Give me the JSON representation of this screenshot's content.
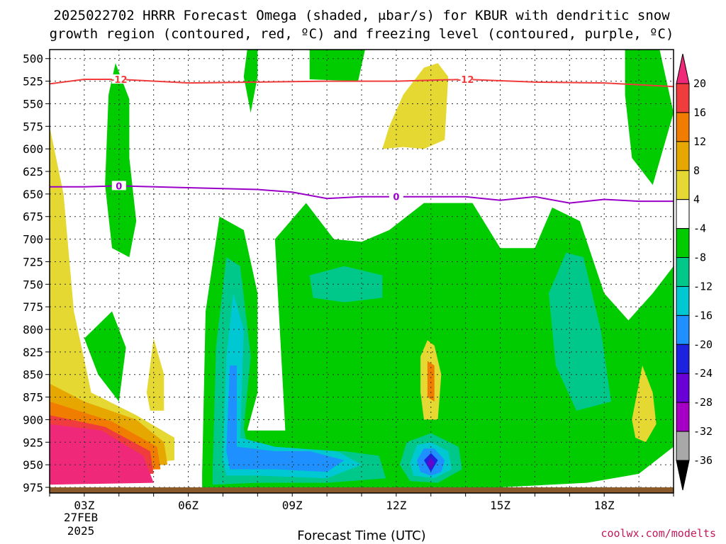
{
  "chart_data": {
    "type": "heatmap",
    "title_lines": [
      "2025022702 HRRR Forecast Omega (shaded, μbar/s) for KBUR with dendritic snow",
      "growth region (contoured, red, ºC) and freezing level (contoured, purple, ºC)"
    ],
    "xlabel": "Forecast Time (UTC)",
    "x_ticks": [
      {
        "hour": 3,
        "label": "03Z"
      },
      {
        "hour": 6,
        "label": "06Z"
      },
      {
        "hour": 9,
        "label": "09Z"
      },
      {
        "hour": 12,
        "label": "12Z"
      },
      {
        "hour": 15,
        "label": "15Z"
      },
      {
        "hour": 18,
        "label": "18Z"
      }
    ],
    "date_label": [
      "27FEB",
      "2025"
    ],
    "xlim": [
      2,
      20
    ],
    "ylim": [
      975,
      490
    ],
    "y_ticks": [
      500,
      525,
      550,
      575,
      600,
      625,
      650,
      675,
      700,
      725,
      750,
      775,
      800,
      825,
      850,
      875,
      900,
      925,
      950,
      975
    ],
    "grid": true,
    "colorbar": {
      "levels": [
        -36,
        -32,
        -28,
        -24,
        -20,
        -16,
        -12,
        -8,
        -4,
        4,
        8,
        12,
        16,
        20
      ],
      "colors": [
        "#000000",
        "#a8a8a8",
        "#a600c4",
        "#6a00d8",
        "#1c22e0",
        "#1e90ff",
        "#00c8d2",
        "#00c88a",
        "#00cc00",
        "#ffffff",
        "#e6d832",
        "#e6a800",
        "#f07c00",
        "#f03c3c",
        "#f0287a"
      ]
    },
    "contours": [
      {
        "label": "-12",
        "color": "#f03c3c",
        "points": [
          [
            2,
            528
          ],
          [
            3,
            523
          ],
          [
            4,
            523
          ],
          [
            6,
            527
          ],
          [
            8,
            526
          ],
          [
            10,
            525
          ],
          [
            12,
            525
          ],
          [
            14,
            523
          ],
          [
            16,
            526
          ],
          [
            18,
            527
          ],
          [
            20,
            531
          ]
        ]
      },
      {
        "label": "0",
        "color": "#9a00c8",
        "points": [
          [
            2,
            642
          ],
          [
            3,
            642
          ],
          [
            4,
            641
          ],
          [
            6,
            643
          ],
          [
            8,
            645
          ],
          [
            9,
            648
          ],
          [
            10,
            655
          ],
          [
            11,
            653
          ],
          [
            12,
            653
          ],
          [
            13,
            653
          ],
          [
            14,
            653
          ],
          [
            15,
            657
          ],
          [
            16,
            653
          ],
          [
            17,
            660
          ],
          [
            18,
            656
          ],
          [
            19,
            658
          ],
          [
            20,
            658
          ]
        ]
      }
    ],
    "omega_regions": [
      {
        "value": 4,
        "points": [
          [
            2,
            575
          ],
          [
            2.4,
            650
          ],
          [
            2.7,
            780
          ],
          [
            3.2,
            870
          ],
          [
            4.5,
            895
          ],
          [
            5.6,
            920
          ],
          [
            5.6,
            945
          ],
          [
            2,
            960
          ]
        ]
      },
      {
        "value": 8,
        "points": [
          [
            2,
            860
          ],
          [
            3,
            880
          ],
          [
            4.5,
            900
          ],
          [
            5.3,
            925
          ],
          [
            5.4,
            950
          ],
          [
            2,
            955
          ]
        ]
      },
      {
        "value": 12,
        "points": [
          [
            2,
            880
          ],
          [
            3.8,
            902
          ],
          [
            5.1,
            930
          ],
          [
            5.2,
            955
          ],
          [
            2,
            958
          ]
        ]
      },
      {
        "value": 16,
        "points": [
          [
            2,
            895
          ],
          [
            3.6,
            908
          ],
          [
            4.9,
            935
          ],
          [
            5,
            960
          ],
          [
            2,
            962
          ]
        ]
      },
      {
        "value": 20,
        "points": [
          [
            2,
            905
          ],
          [
            3.5,
            912
          ],
          [
            4.7,
            940
          ],
          [
            5,
            970
          ],
          [
            2,
            972
          ]
        ]
      },
      {
        "value": -4,
        "points": [
          [
            3.9,
            505
          ],
          [
            4.3,
            545
          ],
          [
            4.3,
            610
          ],
          [
            4.5,
            680
          ],
          [
            4.3,
            720
          ],
          [
            3.8,
            710
          ],
          [
            3.6,
            640
          ],
          [
            3.7,
            540
          ]
        ]
      },
      {
        "value": -4,
        "points": [
          [
            7.7,
            490
          ],
          [
            8,
            490
          ],
          [
            8,
            520
          ],
          [
            7.8,
            560
          ],
          [
            7.6,
            520
          ]
        ]
      },
      {
        "value": -4,
        "points": [
          [
            9.5,
            490
          ],
          [
            11.1,
            490
          ],
          [
            10.9,
            525
          ],
          [
            9.5,
            523
          ]
        ]
      },
      {
        "value": -4,
        "points": [
          [
            18.6,
            490
          ],
          [
            19.6,
            490
          ],
          [
            20,
            560
          ],
          [
            19.4,
            640
          ],
          [
            18.8,
            610
          ],
          [
            18.6,
            540
          ]
        ]
      },
      {
        "value": -4,
        "points": [
          [
            3,
            810
          ],
          [
            3.8,
            780
          ],
          [
            4.2,
            820
          ],
          [
            4,
            880
          ],
          [
            3.4,
            850
          ]
        ]
      },
      {
        "value": -4,
        "points": [
          [
            6.4,
            960
          ],
          [
            6.5,
            780
          ],
          [
            6.9,
            675
          ],
          [
            7.6,
            690
          ],
          [
            8,
            760
          ],
          [
            8,
            870
          ],
          [
            7.7,
            912
          ],
          [
            8.8,
            912
          ],
          [
            8.5,
            700
          ],
          [
            9.4,
            660
          ],
          [
            10.2,
            700
          ],
          [
            11,
            703
          ],
          [
            11.8,
            690
          ],
          [
            12.8,
            660
          ],
          [
            14.2,
            660
          ],
          [
            15,
            710
          ],
          [
            16,
            710
          ],
          [
            16.5,
            665
          ],
          [
            17.3,
            680
          ],
          [
            18,
            760
          ],
          [
            18.7,
            790
          ],
          [
            19.4,
            760
          ],
          [
            20,
            730
          ],
          [
            20,
            930
          ],
          [
            19,
            960
          ],
          [
            17.5,
            970
          ],
          [
            15,
            975
          ],
          [
            12,
            975
          ],
          [
            9,
            975
          ],
          [
            6.4,
            975
          ]
        ]
      },
      {
        "value": -8,
        "points": [
          [
            6.7,
            960
          ],
          [
            6.8,
            820
          ],
          [
            7.1,
            720
          ],
          [
            7.5,
            730
          ],
          [
            7.8,
            830
          ],
          [
            7.6,
            910
          ],
          [
            7.8,
            945
          ],
          [
            9,
            935
          ],
          [
            10.5,
            935
          ],
          [
            11.5,
            940
          ],
          [
            11.7,
            965
          ],
          [
            10,
            970
          ],
          [
            8,
            970
          ],
          [
            6.7,
            972
          ]
        ]
      },
      {
        "value": -8,
        "points": [
          [
            16.4,
            760
          ],
          [
            16.9,
            715
          ],
          [
            17.4,
            720
          ],
          [
            17.9,
            800
          ],
          [
            18.2,
            880
          ],
          [
            17.2,
            890
          ],
          [
            16.6,
            840
          ]
        ]
      },
      {
        "value": -8,
        "points": [
          [
            9.5,
            740
          ],
          [
            10.5,
            730
          ],
          [
            11.6,
            740
          ],
          [
            11.6,
            765
          ],
          [
            10.5,
            770
          ],
          [
            9.6,
            765
          ]
        ]
      },
      {
        "value": -8,
        "points": [
          [
            12.1,
            950
          ],
          [
            12.3,
            925
          ],
          [
            13,
            915
          ],
          [
            13.8,
            930
          ],
          [
            13.9,
            955
          ],
          [
            13.2,
            970
          ],
          [
            12.4,
            968
          ]
        ]
      },
      {
        "value": -12,
        "points": [
          [
            7,
            945
          ],
          [
            7.1,
            830
          ],
          [
            7.3,
            760
          ],
          [
            7.6,
            800
          ],
          [
            7.5,
            920
          ],
          [
            8.5,
            930
          ],
          [
            10.3,
            935
          ],
          [
            11,
            950
          ],
          [
            10,
            965
          ],
          [
            8,
            962
          ],
          [
            7.1,
            962
          ]
        ]
      },
      {
        "value": -12,
        "points": [
          [
            12.4,
            948
          ],
          [
            12.6,
            928
          ],
          [
            13,
            925
          ],
          [
            13.5,
            935
          ],
          [
            13.6,
            955
          ],
          [
            13.1,
            965
          ],
          [
            12.5,
            962
          ]
        ]
      },
      {
        "value": -16,
        "points": [
          [
            7.1,
            935
          ],
          [
            7.2,
            840
          ],
          [
            7.4,
            840
          ],
          [
            7.4,
            930
          ],
          [
            8.5,
            935
          ],
          [
            9.5,
            935
          ],
          [
            10.5,
            945
          ],
          [
            10,
            958
          ],
          [
            8.5,
            955
          ],
          [
            7.2,
            955
          ]
        ]
      },
      {
        "value": -16,
        "points": [
          [
            12.6,
            945
          ],
          [
            12.8,
            932
          ],
          [
            13.1,
            932
          ],
          [
            13.4,
            945
          ],
          [
            13.3,
            958
          ],
          [
            13,
            962
          ],
          [
            12.7,
            958
          ]
        ]
      },
      {
        "value": -20,
        "points": [
          [
            12.8,
            945
          ],
          [
            13,
            937
          ],
          [
            13.2,
            945
          ],
          [
            13,
            958
          ]
        ]
      },
      {
        "value": -24,
        "points": [
          [
            12.9,
            948
          ],
          [
            13,
            942
          ],
          [
            13.1,
            948
          ],
          [
            13,
            955
          ]
        ]
      },
      {
        "value": -4,
        "points": [
          [
            12.2,
            840
          ],
          [
            12.3,
            790
          ],
          [
            12.8,
            770
          ],
          [
            13.4,
            775
          ],
          [
            13.8,
            810
          ],
          [
            13.7,
            880
          ],
          [
            13.2,
            900
          ],
          [
            12.6,
            900
          ],
          [
            12.3,
            880
          ]
        ]
      },
      {
        "value": 4,
        "points": [
          [
            11.6,
            600
          ],
          [
            11.8,
            575
          ],
          [
            12.2,
            540
          ],
          [
            12.8,
            510
          ],
          [
            13.2,
            505
          ],
          [
            13.5,
            520
          ],
          [
            13.4,
            590
          ],
          [
            12.8,
            600
          ],
          [
            12.2,
            598
          ]
        ]
      },
      {
        "value": 4,
        "points": [
          [
            12.7,
            870
          ],
          [
            12.7,
            830
          ],
          [
            12.9,
            812
          ],
          [
            13.1,
            818
          ],
          [
            13.3,
            850
          ],
          [
            13.2,
            900
          ],
          [
            12.8,
            900
          ]
        ]
      },
      {
        "value": 4,
        "points": [
          [
            18.8,
            900
          ],
          [
            19.1,
            840
          ],
          [
            19.4,
            870
          ],
          [
            19.5,
            905
          ],
          [
            19.2,
            925
          ],
          [
            18.9,
            920
          ]
        ]
      },
      {
        "value": 4,
        "points": [
          [
            4.8,
            870
          ],
          [
            5,
            810
          ],
          [
            5.3,
            850
          ],
          [
            5.3,
            890
          ],
          [
            4.9,
            890
          ]
        ]
      },
      {
        "value": 12,
        "points": [
          [
            12.9,
            875
          ],
          [
            12.9,
            835
          ],
          [
            13.1,
            840
          ],
          [
            13.1,
            880
          ]
        ]
      }
    ],
    "credit": "coolwx.com/modelts"
  }
}
